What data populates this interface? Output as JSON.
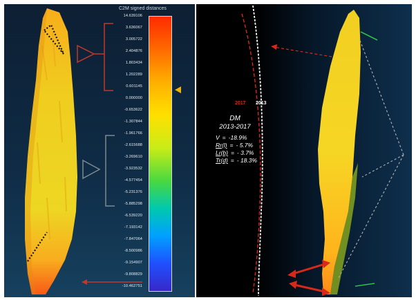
{
  "colorbar": {
    "title": "C2M signed distances",
    "ticks": [
      "14.639106",
      "3.636067",
      "3.005722",
      "2.404876",
      "1.803434",
      "1.202289",
      "0.601145",
      "0.000000",
      "-0.653622",
      "-1.307844",
      "-1.961766",
      "-2.615688",
      "-3.269610",
      "-3.923532",
      "-4.577454",
      "-5.231376",
      "-5.885298",
      "-6.539220",
      "-7.193142",
      "-7.847064",
      "-8.500986",
      "-9.154907",
      "-9.808829",
      "-10.462751"
    ]
  },
  "comparison": {
    "label_2017": "2017",
    "label_2013": "2013",
    "title": "DM",
    "period": "2013-2017",
    "metrics": [
      {
        "key": "V",
        "sep": "=",
        "value": "-18.9%"
      },
      {
        "key": "Rr(l)",
        "sep": "=",
        "value": "- 5.7%"
      },
      {
        "key": "Lr(b)",
        "sep": "=",
        "value": "- 3.7%"
      },
      {
        "key": "Tr(d)",
        "sep": "=",
        "value": "- 18.3%"
      }
    ]
  },
  "colors": {
    "year_2017": "#d8281a",
    "year_2013": "#ffffff",
    "highlight_arrow": "#f2b400",
    "callout_red": "#c0382c",
    "green_arrow": "#2fbf4a"
  }
}
